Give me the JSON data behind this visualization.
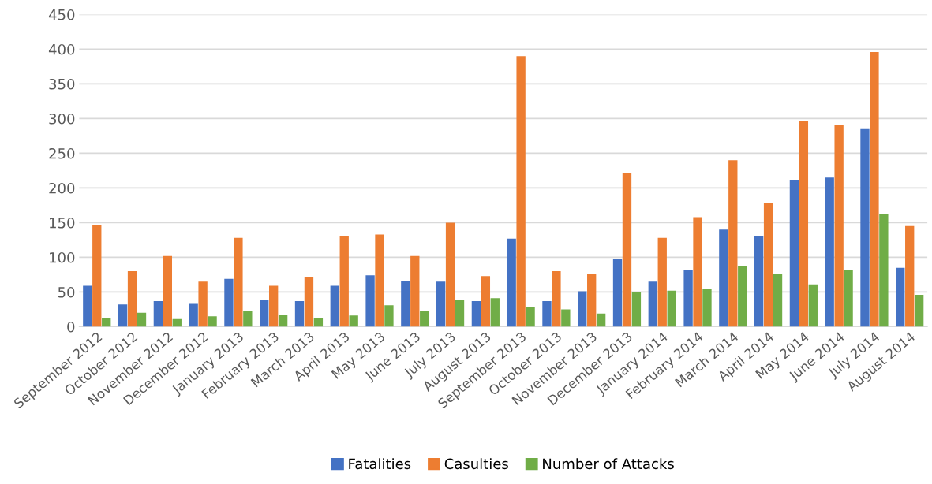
{
  "chart_data": {
    "type": "bar",
    "categories": [
      "September 2012",
      "October 2012",
      "November 2012",
      "December 2012",
      "January 2013",
      "February 2013",
      "March 2013",
      "April 2013",
      "May 2013",
      "June 2013",
      "July 2013",
      "August 2013",
      "September 2013",
      "October 2013",
      "November 2013",
      "December 2013",
      "January 2014",
      "February 2014",
      "March 2014",
      "April 2014",
      "May 2014",
      "June 2014",
      "July 2014",
      "August 2014"
    ],
    "series": [
      {
        "name": "Fatalities",
        "color": "#4472c4",
        "values": [
          59,
          32,
          37,
          33,
          69,
          38,
          37,
          59,
          74,
          66,
          65,
          37,
          127,
          37,
          51,
          98,
          65,
          82,
          140,
          131,
          212,
          215,
          285,
          85
        ]
      },
      {
        "name": "Casulties",
        "color": "#ed7d31",
        "values": [
          146,
          80,
          102,
          65,
          128,
          59,
          71,
          131,
          133,
          102,
          150,
          73,
          390,
          80,
          76,
          222,
          128,
          158,
          240,
          178,
          296,
          291,
          396,
          145
        ]
      },
      {
        "name": "Number of Attacks",
        "color": "#70ad47",
        "values": [
          13,
          20,
          11,
          15,
          23,
          17,
          12,
          16,
          31,
          23,
          39,
          41,
          29,
          25,
          19,
          50,
          52,
          55,
          88,
          76,
          61,
          82,
          163,
          46
        ]
      }
    ],
    "ylim": [
      0,
      450
    ],
    "yticks": [
      0,
      50,
      100,
      150,
      200,
      250,
      300,
      350,
      400,
      450
    ],
    "grid": "y",
    "legend": "bottom"
  }
}
